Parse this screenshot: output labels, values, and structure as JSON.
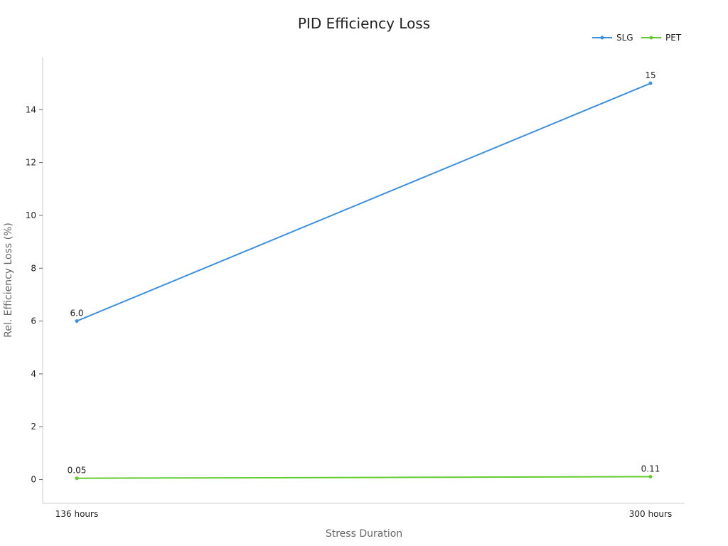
{
  "chart_data": {
    "type": "line",
    "title": "PID Efficiency Loss",
    "xlabel": "Stress Duration",
    "ylabel": "Rel. Efficiency Loss (%)",
    "categories": [
      "136 hours",
      "300 hours"
    ],
    "yticks": [
      "0",
      "2",
      "4",
      "6",
      "8",
      "10",
      "12",
      "14"
    ],
    "ylim": [
      -0.9,
      16
    ],
    "grid": false,
    "legend_position": "top-right",
    "series": [
      {
        "name": "SLG",
        "color": "#3b8fe0",
        "values": [
          6.0,
          15
        ],
        "labels": [
          "6.0",
          "15"
        ]
      },
      {
        "name": "PET",
        "color": "#62cc2e",
        "values": [
          0.05,
          0.11
        ],
        "labels": [
          "0.05",
          "0.11"
        ]
      }
    ]
  }
}
